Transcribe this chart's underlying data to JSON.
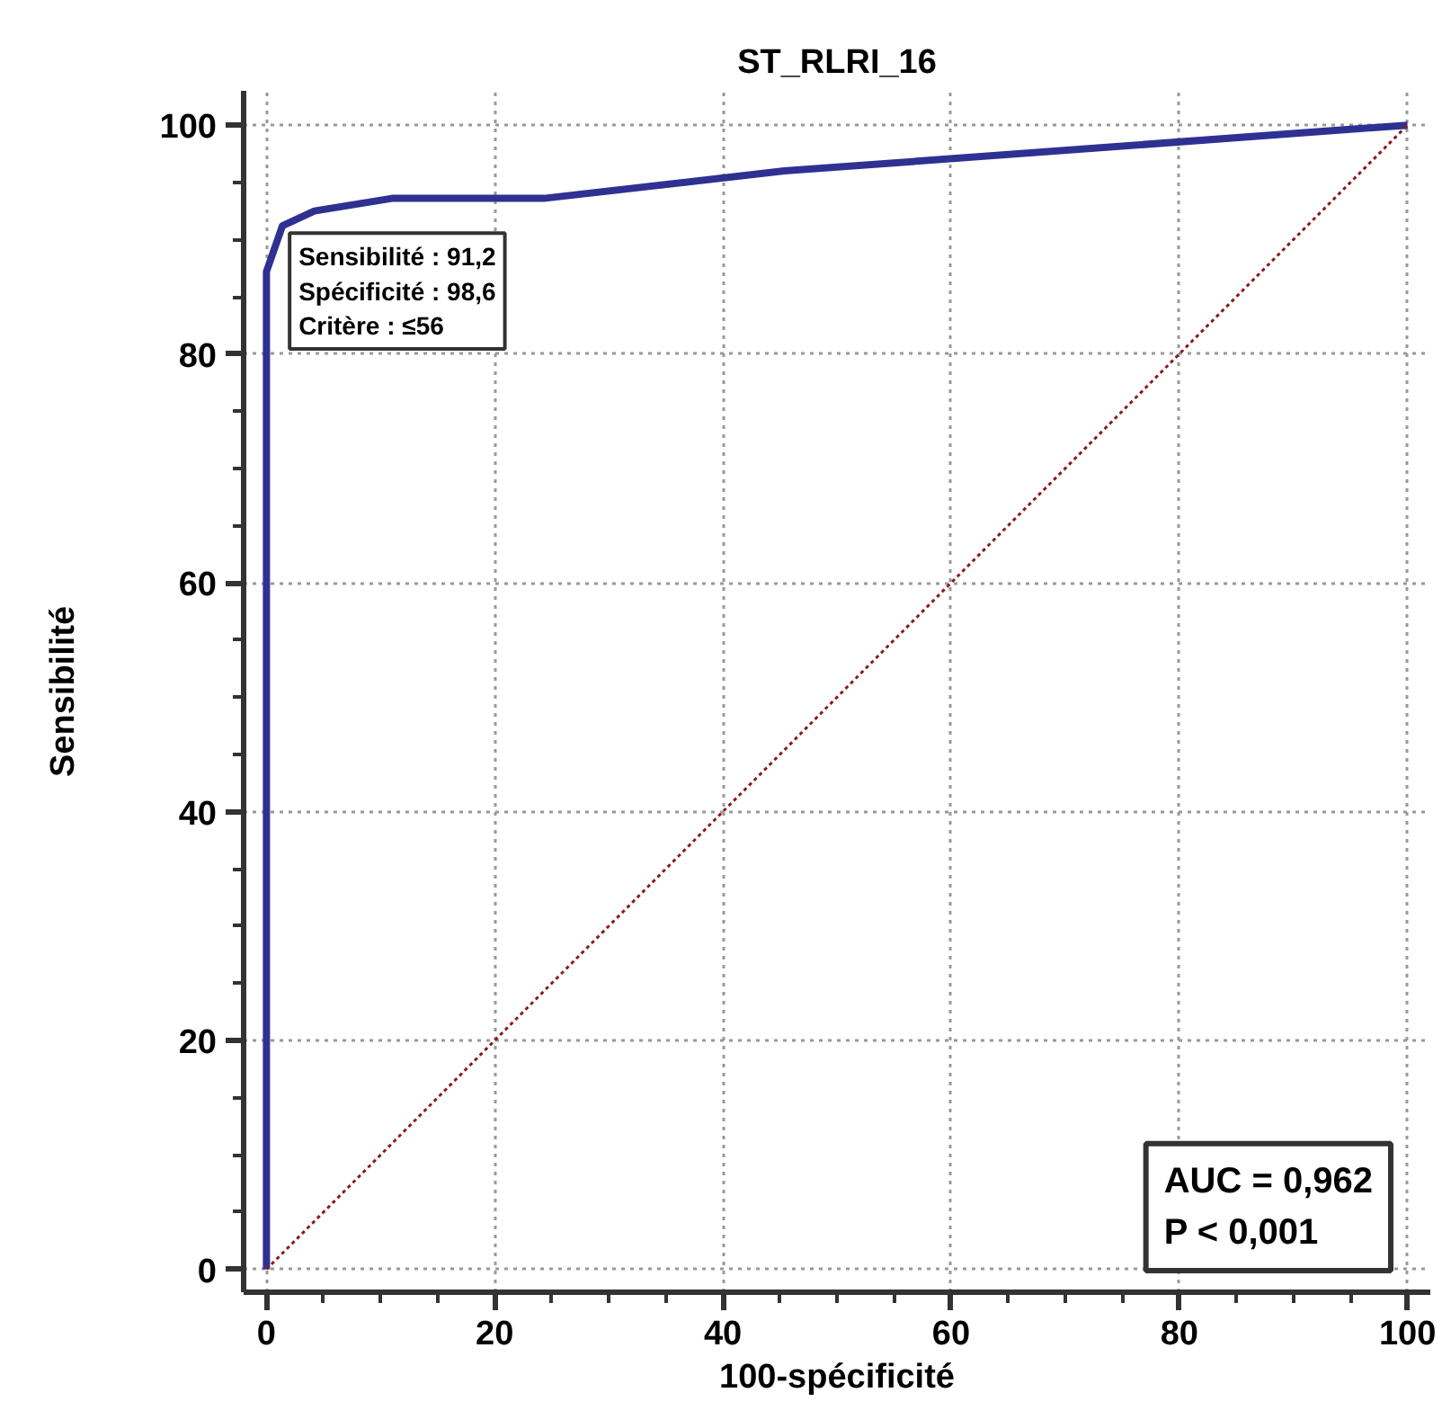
{
  "chart_data": {
    "type": "line",
    "title": "ST_RLRI_16",
    "xlabel": "100-spécificité",
    "ylabel": "Sensibilité",
    "xlim": [
      -2,
      102
    ],
    "ylim": [
      -2,
      103
    ],
    "xticks": [
      0,
      20,
      40,
      60,
      80,
      100
    ],
    "yticks": [
      0,
      20,
      40,
      60,
      80,
      100
    ],
    "grid": true,
    "series": [
      {
        "color": "#2e3192",
        "line_style": "solid",
        "x": [
          0,
          0,
          1.4,
          4.2,
          11,
          24.3,
          45.4,
          100
        ],
        "values": [
          0,
          87.2,
          91.2,
          92.5,
          93.6,
          93.6,
          96,
          100
        ]
      },
      {
        "color": "#8b1a1a",
        "line_style": "dotted",
        "x": [
          0,
          100
        ],
        "values": [
          0,
          100
        ]
      }
    ],
    "annotations": [
      {
        "text": "Sensibilité : 91,2\nSpécificité : 98,6\nCritère : ≤56",
        "x": 1.4,
        "y": 91.2
      },
      "AUC = 0,962\nP < 0,001"
    ]
  }
}
